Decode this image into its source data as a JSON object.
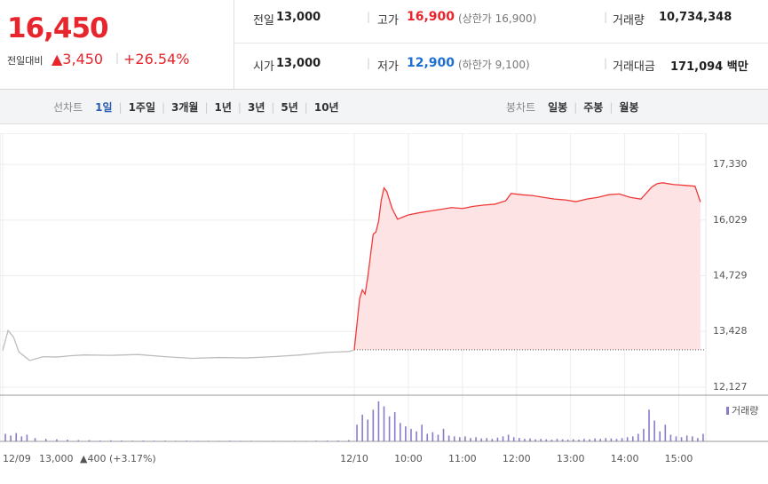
{
  "quote": {
    "price": "16,450",
    "change_label": "전일대비",
    "change": "▲3,450",
    "change_pct": "+26.54%"
  },
  "stats": [
    [
      {
        "label": "전일",
        "value": "13,000"
      },
      {
        "label": "고가",
        "value": "16,900",
        "note": "(상한가 16,900)"
      },
      {
        "label": "거래량",
        "value": "10,734,348"
      }
    ],
    [
      {
        "label": "시가",
        "value": "13,000"
      },
      {
        "label": "저가",
        "value": "12,900",
        "note": "(하한가 9,100)"
      },
      {
        "label": "거래대금",
        "value": "171,094 백만"
      }
    ]
  ],
  "line_nav": {
    "label": "선차트",
    "items": [
      "1일",
      "1주일",
      "3개월",
      "1년",
      "3년",
      "5년",
      "10년"
    ]
  },
  "candle_nav": {
    "label": "봉차트",
    "items": [
      "일봉",
      "주봉",
      "월봉"
    ]
  },
  "chart_data": {
    "type": "line",
    "xlim": [
      0,
      13
    ],
    "xticks": [
      {
        "value": 0,
        "label": "12/09"
      },
      {
        "value": 6.5,
        "label": "12/10"
      },
      {
        "value": 7.5,
        "label": "10:00"
      },
      {
        "value": 8.5,
        "label": "11:00"
      },
      {
        "value": 9.5,
        "label": "12:00"
      },
      {
        "value": 10.5,
        "label": "13:00"
      },
      {
        "value": 11.5,
        "label": "14:00"
      },
      {
        "value": 12.5,
        "label": "15:00"
      }
    ],
    "ylim": [
      11940,
      17850
    ],
    "yticks": [
      {
        "value": 17330,
        "label": "17,330"
      },
      {
        "value": 16029,
        "label": "16,029"
      },
      {
        "value": 14729,
        "label": "14,729"
      },
      {
        "value": 13428,
        "label": "13,428"
      },
      {
        "value": 12127,
        "label": "12,127"
      }
    ],
    "grid": true,
    "baseline": 13000,
    "annotation": {
      "close": "13,000",
      "change": "▲400 (+3.17%)"
    },
    "series": [
      {
        "color": "#bdbdbd",
        "x": [
          0,
          0.1,
          0.2,
          0.3,
          0.5,
          0.75,
          1,
          1.25,
          1.5,
          2,
          2.5,
          3,
          3.5,
          4,
          4.5,
          5,
          5.5,
          6,
          6.4,
          6.49
        ],
        "values": [
          12980,
          13450,
          13300,
          12950,
          12750,
          12840,
          12830,
          12860,
          12880,
          12870,
          12890,
          12840,
          12800,
          12820,
          12810,
          12840,
          12880,
          12940,
          12960,
          12990
        ]
      },
      {
        "color": "#f03a3a",
        "fill": "#fde3e3",
        "x": [
          6.5,
          6.55,
          6.6,
          6.65,
          6.7,
          6.75,
          6.8,
          6.85,
          6.9,
          6.95,
          7.0,
          7.05,
          7.1,
          7.2,
          7.3,
          7.4,
          7.5,
          7.7,
          7.9,
          8.1,
          8.3,
          8.5,
          8.7,
          8.9,
          9.1,
          9.3,
          9.4,
          9.6,
          9.8,
          10.0,
          10.2,
          10.4,
          10.6,
          10.8,
          11.0,
          11.2,
          11.4,
          11.6,
          11.8,
          12.0,
          12.1,
          12.2,
          12.4,
          12.6,
          12.8,
          12.9
        ],
        "values": [
          13000,
          13600,
          14200,
          14400,
          14300,
          14700,
          15200,
          15700,
          15750,
          16000,
          16500,
          16780,
          16700,
          16300,
          16050,
          16100,
          16150,
          16200,
          16240,
          16280,
          16320,
          16300,
          16350,
          16380,
          16400,
          16480,
          16650,
          16620,
          16600,
          16560,
          16520,
          16500,
          16460,
          16520,
          16560,
          16620,
          16640,
          16560,
          16520,
          16800,
          16880,
          16900,
          16860,
          16840,
          16820,
          16450
        ]
      }
    ],
    "volume": {
      "name": "거래량",
      "color": "#8a7bc8",
      "ylim": [
        0,
        500000
      ],
      "x": [
        0.05,
        0.15,
        0.25,
        0.35,
        0.45,
        0.6,
        0.8,
        1,
        1.2,
        1.4,
        1.6,
        1.8,
        2,
        2.2,
        2.4,
        2.6,
        2.8,
        3,
        3.2,
        3.4,
        3.6,
        3.8,
        4,
        4.2,
        4.4,
        4.6,
        4.8,
        5,
        5.2,
        5.4,
        5.6,
        5.8,
        6,
        6.2,
        6.4,
        6.55,
        6.65,
        6.75,
        6.85,
        6.95,
        7.05,
        7.15,
        7.25,
        7.35,
        7.45,
        7.55,
        7.65,
        7.75,
        7.85,
        7.95,
        8.05,
        8.15,
        8.25,
        8.35,
        8.45,
        8.55,
        8.65,
        8.75,
        8.85,
        8.95,
        9.05,
        9.15,
        9.25,
        9.35,
        9.45,
        9.55,
        9.65,
        9.75,
        9.85,
        9.95,
        10.05,
        10.15,
        10.25,
        10.35,
        10.45,
        10.55,
        10.65,
        10.75,
        10.85,
        10.95,
        11.05,
        11.15,
        11.25,
        11.35,
        11.45,
        11.55,
        11.65,
        11.75,
        11.85,
        11.95,
        12.05,
        12.15,
        12.25,
        12.35,
        12.45,
        12.55,
        12.65,
        12.75,
        12.85,
        12.95
      ],
      "values": [
        90000,
        70000,
        100000,
        60000,
        80000,
        40000,
        30000,
        25000,
        20000,
        15000,
        15000,
        10000,
        12000,
        10000,
        8000,
        10000,
        8000,
        9000,
        7000,
        8000,
        6000,
        7000,
        6000,
        8000,
        6000,
        7000,
        5000,
        6000,
        5000,
        7000,
        6000,
        8000,
        9000,
        10000,
        15000,
        200000,
        320000,
        260000,
        380000,
        480000,
        420000,
        300000,
        350000,
        220000,
        180000,
        150000,
        120000,
        200000,
        90000,
        110000,
        80000,
        150000,
        70000,
        60000,
        50000,
        60000,
        40000,
        50000,
        35000,
        40000,
        30000,
        45000,
        60000,
        80000,
        50000,
        40000,
        30000,
        35000,
        25000,
        30000,
        25000,
        20000,
        30000,
        25000,
        20000,
        25000,
        20000,
        30000,
        25000,
        35000,
        30000,
        40000,
        35000,
        30000,
        40000,
        50000,
        60000,
        90000,
        150000,
        380000,
        250000,
        120000,
        200000,
        80000,
        60000,
        50000,
        70000,
        60000,
        40000,
        90000
      ]
    }
  }
}
